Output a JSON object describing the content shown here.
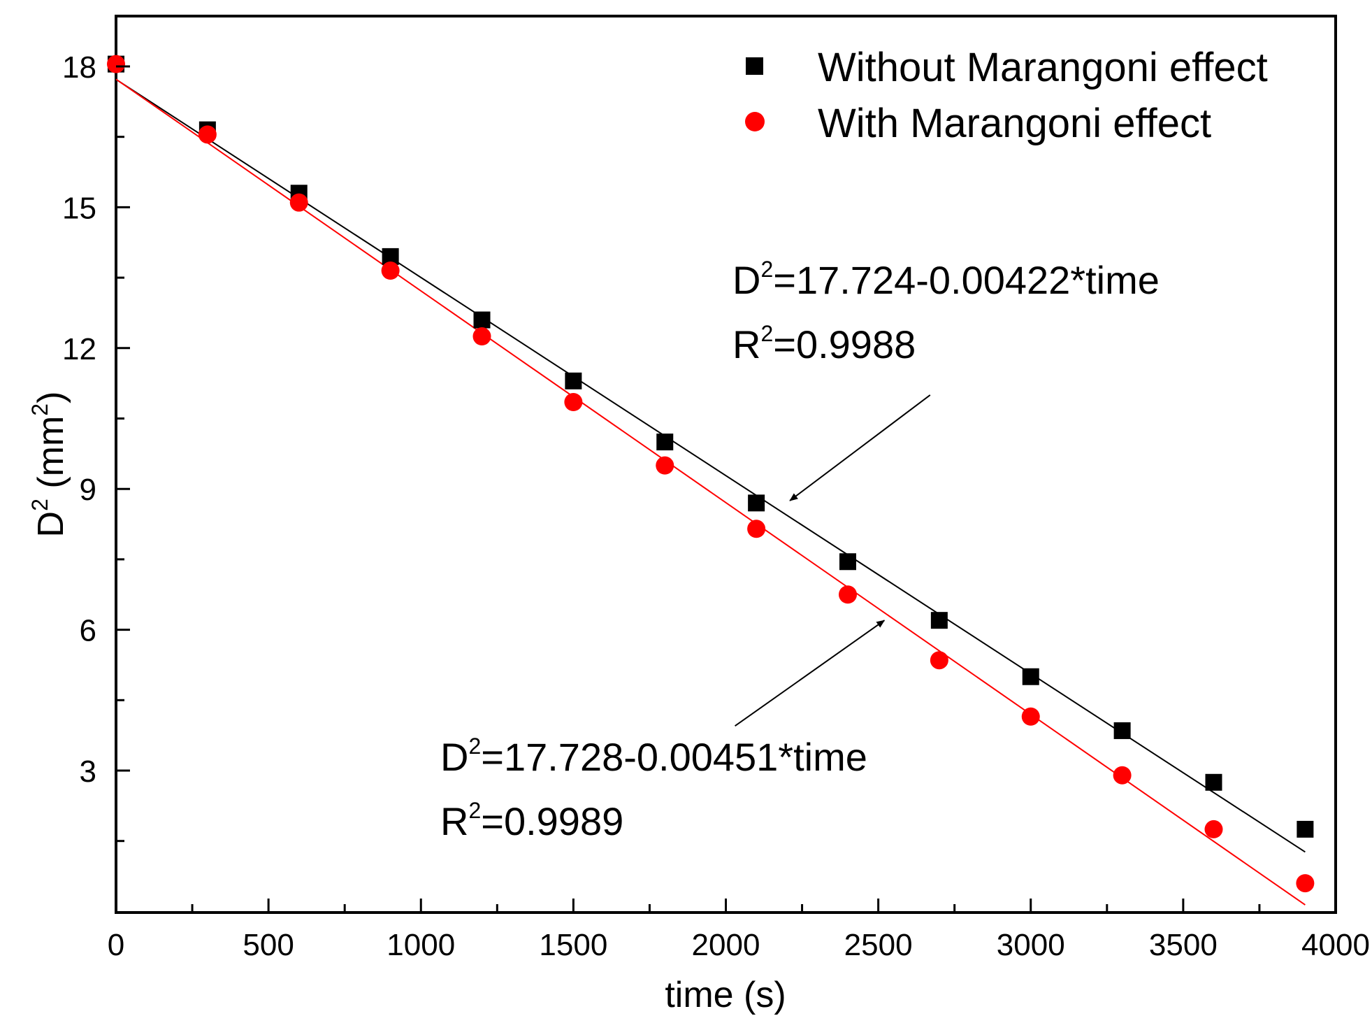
{
  "chart_data": {
    "type": "scatter",
    "xlabel": "time (s)",
    "ylabel_main": "D",
    "ylabel_sup": "2",
    "ylabel_unit_open": " (mm",
    "ylabel_unit_sup": "2",
    "ylabel_unit_close": ")",
    "xlim": [
      0,
      4000
    ],
    "ylim": [
      0,
      19
    ],
    "xticks": [
      0,
      500,
      1000,
      1500,
      2000,
      2500,
      3000,
      3500,
      4000
    ],
    "xtick_labels": [
      "0",
      "500",
      "1000",
      "1500",
      "2000",
      "2500",
      "3000",
      "3500",
      "4000"
    ],
    "yticks": [
      3,
      6,
      9,
      12,
      15,
      18
    ],
    "ytick_labels": [
      "3",
      "6",
      "9",
      "12",
      "15",
      "18"
    ],
    "x_minor_step": 250,
    "y_minor_step": 1.5,
    "grid": false,
    "legend_position": "top-right",
    "series": [
      {
        "name": "Without Marangoni effect",
        "marker": "square",
        "color": "#000000",
        "x": [
          0,
          300,
          600,
          900,
          1200,
          1500,
          1800,
          2100,
          2400,
          2700,
          3000,
          3300,
          3600,
          3900
        ],
        "y": [
          18.05,
          16.65,
          15.3,
          13.95,
          12.6,
          11.3,
          10.0,
          8.7,
          7.45,
          6.2,
          5.0,
          3.85,
          2.75,
          1.75
        ],
        "fit": {
          "intercept": 17.724,
          "slope": -0.00422,
          "x_range": [
            0,
            3900
          ]
        }
      },
      {
        "name": "With Marangoni effect",
        "marker": "circle",
        "color": "#ff0000",
        "x": [
          0,
          300,
          600,
          900,
          1200,
          1500,
          1800,
          2100,
          2400,
          2700,
          3000,
          3300,
          3600,
          3900
        ],
        "y": [
          18.05,
          16.55,
          15.1,
          13.65,
          12.25,
          10.85,
          9.5,
          8.15,
          6.75,
          5.35,
          4.15,
          2.9,
          1.75,
          0.6
        ],
        "fit": {
          "intercept": 17.728,
          "slope": -0.00451,
          "x_range": [
            0,
            3900
          ]
        }
      }
    ],
    "annotations": [
      {
        "id": "black",
        "eq_prefix": "D",
        "eq_sup": "2",
        "eq_rest": "=17.724-0.00422*time",
        "r_prefix": "R",
        "r_sup": "2",
        "r_rest": "=0.9988",
        "arrow_from": [
          2670,
          11.0
        ],
        "arrow_to": [
          2210,
          8.75
        ]
      },
      {
        "id": "red",
        "eq_prefix": "D",
        "eq_sup": "2",
        "eq_rest": "=17.728-0.00451*time",
        "r_prefix": "R",
        "r_sup": "2",
        "r_rest": "=0.9989",
        "arrow_from": [
          2030,
          3.95
        ],
        "arrow_to": [
          2520,
          6.2
        ]
      }
    ]
  }
}
